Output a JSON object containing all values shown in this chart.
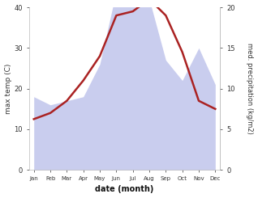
{
  "months": [
    "Jan",
    "Feb",
    "Mar",
    "Apr",
    "May",
    "Jun",
    "Jul",
    "Aug",
    "Sep",
    "Oct",
    "Nov",
    "Dec"
  ],
  "temperature": [
    12.5,
    14,
    17,
    22,
    28,
    38,
    39,
    42,
    38,
    29,
    17,
    15
  ],
  "precipitation_kg": [
    9,
    8,
    8.5,
    9,
    13,
    22,
    23,
    21,
    13.5,
    11,
    15,
    10.5
  ],
  "left_ylim": [
    0,
    40
  ],
  "right_ylim": [
    0,
    20
  ],
  "left_yticks": [
    0,
    10,
    20,
    30,
    40
  ],
  "right_yticks": [
    0,
    5,
    10,
    15,
    20
  ],
  "temp_color": "#aa2222",
  "precip_fill_color": "#b3b8e8",
  "precip_fill_alpha": 0.7,
  "xlabel": "date (month)",
  "ylabel_left": "max temp (C)",
  "ylabel_right": "med. precipitation (kg/m2)",
  "background_color": "#ffffff",
  "line_width": 1.8,
  "scale_factor": 2.0
}
